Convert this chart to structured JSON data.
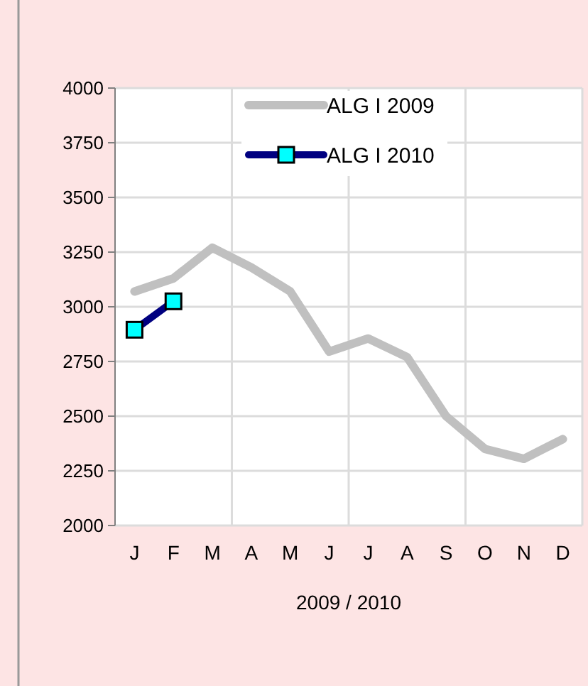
{
  "chart_data": {
    "type": "line",
    "xlabel": "2009 / 2010",
    "categories": [
      "J",
      "F",
      "M",
      "A",
      "M",
      "J",
      "J",
      "A",
      "S",
      "O",
      "N",
      "D"
    ],
    "series": [
      {
        "name": "ALG I 2009",
        "color": "#c0c0c0",
        "marker": "none",
        "values": [
          3070,
          3130,
          3270,
          3180,
          3070,
          2795,
          2855,
          2770,
          2500,
          2350,
          2305,
          2395
        ]
      },
      {
        "name": "ALG I 2010",
        "color": "#000080",
        "marker": "square",
        "values": [
          2895,
          3025,
          null,
          null,
          null,
          null,
          null,
          null,
          null,
          null,
          null,
          null
        ]
      }
    ],
    "ylim": [
      2000,
      4000
    ],
    "yticks": [
      2000,
      2250,
      2500,
      2750,
      3000,
      3250,
      3500,
      3750,
      4000
    ],
    "grid": true,
    "legend": "top right"
  }
}
